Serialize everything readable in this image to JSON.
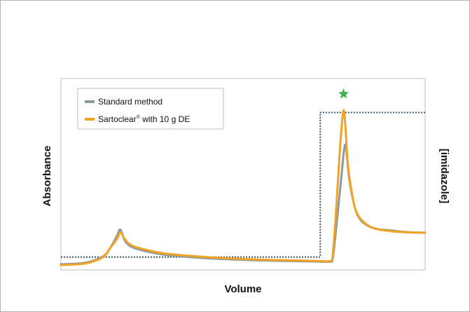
{
  "chart_data": {
    "type": "line",
    "title": "",
    "xlabel": "Volume",
    "ylabel": "Absorbance",
    "y2label": "[imidazole]",
    "xlim": [
      0,
      100
    ],
    "ylim": [
      0,
      100
    ],
    "y2lim": [
      0,
      100
    ],
    "grid": false,
    "ticks": false,
    "legend": {
      "placement": "top-left",
      "entries": [
        {
          "label": "Standard method",
          "superscript": "",
          "label_rest": "",
          "color": "#8c9aa0"
        },
        {
          "label": "Sartoclear",
          "superscript": "®",
          "label_rest": " with 10 g DE",
          "color": "#f2a324"
        }
      ]
    },
    "series": [
      {
        "name": "Standard method",
        "color": "#8c9aa0",
        "x": [
          0,
          6.7,
          11.5,
          13.5,
          15.4,
          16.3,
          17.5,
          19.2,
          23.1,
          28.8,
          38.5,
          48.1,
          57.7,
          67.3,
          71.2,
          74.0,
          74.6,
          75.4,
          76.9,
          77.7,
          78.1,
          78.5,
          79.2,
          80.4,
          81.5,
          83.5,
          86.5,
          90.4,
          94.2,
          98.1,
          100
        ],
        "y": [
          0.5,
          1.5,
          5.5,
          11,
          19,
          23,
          16,
          12,
          9,
          6.6,
          4.6,
          3.5,
          2.8,
          2.4,
          2.2,
          2.2,
          4,
          20,
          55,
          74,
          78,
          71,
          55,
          40,
          32,
          26.5,
          23.5,
          22.5,
          21.5,
          21,
          21
        ]
      },
      {
        "name": "Sartoclear® with 10 g DE",
        "color": "#f2a324",
        "x": [
          0,
          6.7,
          11.5,
          13.5,
          15.4,
          16.3,
          17.5,
          19.2,
          23.1,
          28.8,
          38.5,
          48.1,
          57.7,
          67.3,
          71.2,
          74.0,
          74.6,
          75.4,
          76.6,
          77.3,
          77.7,
          78.1,
          78.8,
          80.0,
          81.2,
          83.5,
          86.5,
          90.4,
          94.2,
          98.1,
          100
        ],
        "y": [
          0,
          1.0,
          5,
          11,
          17,
          21,
          17,
          13,
          10,
          7.4,
          5.4,
          4.1,
          3.3,
          2.8,
          2.6,
          2.6,
          6,
          30,
          75,
          96,
          100,
          90,
          65,
          45,
          34,
          27,
          23.5,
          22,
          21.3,
          21,
          21
        ]
      },
      {
        "name": "",
        "role": "imidazole",
        "axis": "y2",
        "color": "#3d5566",
        "dash": "dotted",
        "x": [
          0,
          71.2,
          71.2,
          100
        ],
        "y": [
          5,
          5,
          95,
          95
        ]
      }
    ],
    "annotations": [
      {
        "type": "star",
        "x": 77.6,
        "y": 102,
        "color": "#3cb34a"
      }
    ]
  }
}
